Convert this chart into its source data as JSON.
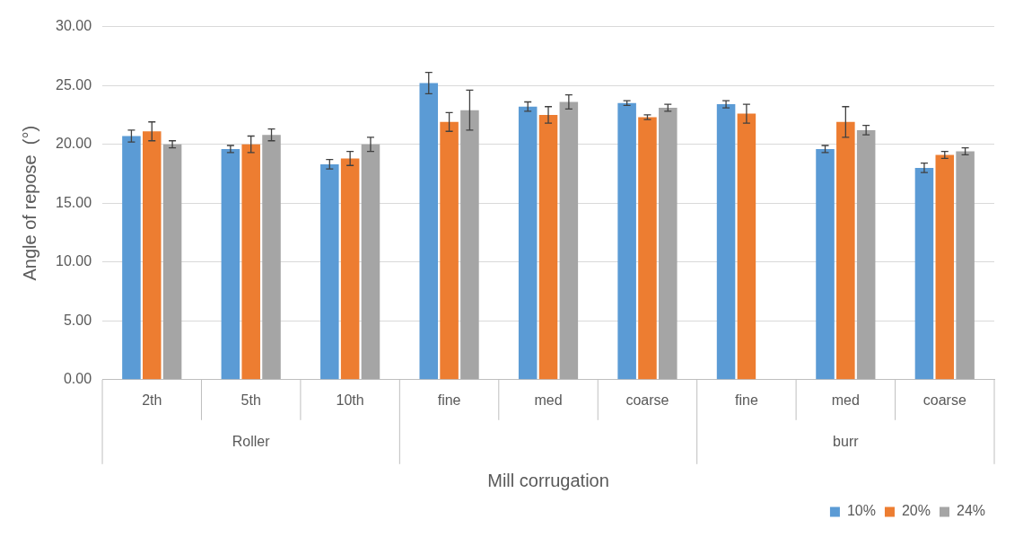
{
  "chart_data": {
    "type": "bar",
    "xlabel": "Mill corrugation",
    "ylabel": "Angle of repose  (°)",
    "categories": [
      "2th",
      "5th",
      "10th",
      "fine",
      "med",
      "coarse",
      "fine",
      "med",
      "coarse"
    ],
    "annotations": [
      "Roller",
      "burr"
    ],
    "series": [
      {
        "name": "10%",
        "color": "#5b9bd5",
        "values": [
          20.7,
          19.6,
          18.3,
          25.2,
          23.2,
          23.5,
          23.4,
          19.6,
          18.0
        ],
        "errors": [
          0.5,
          0.3,
          0.4,
          0.9,
          0.4,
          0.2,
          0.3,
          0.3,
          0.4
        ]
      },
      {
        "name": "20%",
        "color": "#ed7d31",
        "values": [
          21.1,
          20.0,
          18.8,
          21.9,
          22.5,
          22.3,
          22.6,
          21.9,
          19.1
        ],
        "errors": [
          0.8,
          0.7,
          0.6,
          0.8,
          0.7,
          0.2,
          0.8,
          1.3,
          0.3
        ]
      },
      {
        "name": "24%",
        "color": "#a5a5a5",
        "values": [
          20.0,
          20.8,
          20.0,
          22.9,
          23.6,
          23.1,
          null,
          21.2,
          19.4
        ],
        "errors": [
          0.3,
          0.5,
          0.6,
          1.7,
          0.6,
          0.3,
          null,
          0.4,
          0.3
        ]
      }
    ],
    "ylim": [
      0,
      30
    ],
    "yticks": [
      {
        "value": 0,
        "label": "0.00"
      },
      {
        "value": 5,
        "label": "5.00"
      },
      {
        "value": 10,
        "label": "10.00"
      },
      {
        "value": 15,
        "label": "15.00"
      },
      {
        "value": 20,
        "label": "20.00"
      },
      {
        "value": 25,
        "label": "25.00"
      },
      {
        "value": 30,
        "label": "30.00"
      }
    ],
    "grid": "y",
    "legend": "bottom right"
  }
}
